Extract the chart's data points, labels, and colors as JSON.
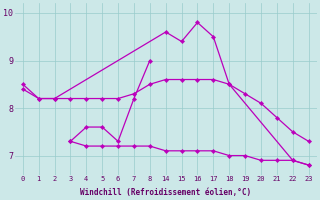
{
  "xlabel": "Windchill (Refroidissement éolien,°C)",
  "background_color": "#cce8e8",
  "line_color": "#bb00bb",
  "grid_color": "#99cccc",
  "ylim": [
    6.6,
    10.2
  ],
  "yticks": [
    7,
    8,
    9,
    10
  ],
  "hour_labels": [
    "0",
    "1",
    "2",
    "3",
    "4",
    "5",
    "6",
    "7",
    "8",
    "14",
    "15",
    "16",
    "17",
    "18",
    "19",
    "20",
    "21",
    "22",
    "23"
  ],
  "lines": [
    {
      "idx": [
        0,
        1,
        2,
        9,
        10,
        11,
        12,
        13,
        17,
        18
      ],
      "y": [
        8.5,
        8.2,
        8.2,
        9.6,
        9.4,
        9.8,
        9.5,
        8.5,
        6.9,
        6.8
      ]
    },
    {
      "idx": [
        0,
        1,
        2,
        3,
        4,
        5,
        6,
        7,
        8,
        9,
        10,
        11,
        12,
        13,
        14,
        15,
        16,
        17,
        18
      ],
      "y": [
        8.4,
        8.2,
        8.2,
        8.2,
        8.2,
        8.2,
        8.2,
        8.3,
        8.5,
        8.6,
        8.6,
        8.6,
        8.6,
        8.5,
        8.3,
        8.1,
        7.8,
        7.5,
        7.3
      ]
    },
    {
      "idx": [
        3,
        4,
        5,
        6,
        7,
        8
      ],
      "y": [
        7.3,
        7.6,
        7.6,
        7.3,
        8.2,
        9.0
      ]
    },
    {
      "idx": [
        3,
        4,
        5,
        6,
        7,
        8,
        9,
        10,
        11,
        12,
        13,
        14,
        15,
        16,
        17,
        18
      ],
      "y": [
        7.3,
        7.2,
        7.2,
        7.2,
        7.2,
        7.2,
        7.1,
        7.1,
        7.1,
        7.1,
        7.0,
        7.0,
        6.9,
        6.9,
        6.9,
        6.8
      ]
    }
  ]
}
